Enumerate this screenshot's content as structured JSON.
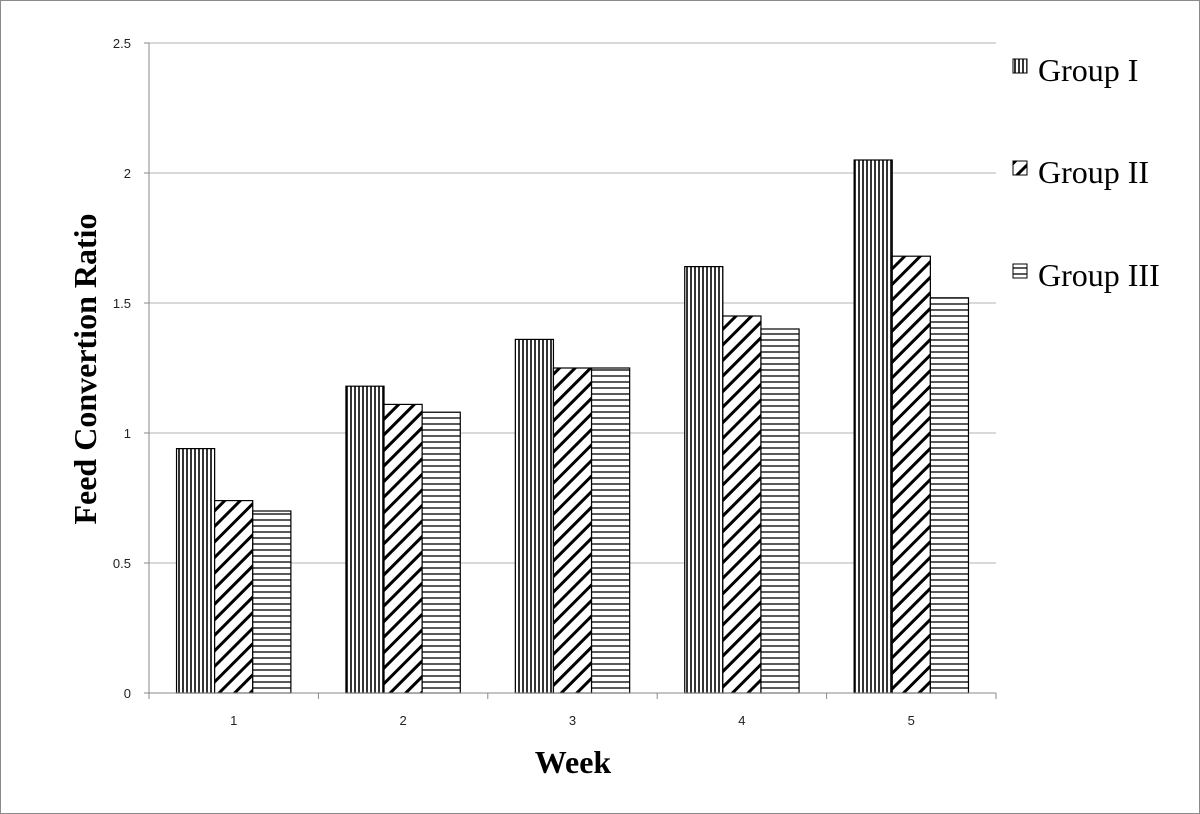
{
  "chart_data": {
    "type": "bar",
    "title": "",
    "xlabel": "Week",
    "ylabel": "Feed Convertion Ratio",
    "categories": [
      "1",
      "2",
      "3",
      "4",
      "5"
    ],
    "series": [
      {
        "name": "Group I",
        "pattern": "vertical-lines",
        "values": [
          0.94,
          1.18,
          1.36,
          1.64,
          2.05
        ]
      },
      {
        "name": "Group II",
        "pattern": "diagonal-lines",
        "values": [
          0.74,
          1.11,
          1.25,
          1.45,
          1.68
        ]
      },
      {
        "name": "Group III",
        "pattern": "horizontal-lines",
        "values": [
          0.7,
          1.08,
          1.25,
          1.4,
          1.52
        ]
      }
    ],
    "ylim": [
      0,
      2.5
    ],
    "yticks": [
      "0",
      "0.5",
      "1",
      "1.5",
      "2",
      "2.5"
    ],
    "grid": "horizontal",
    "legend_position": "right"
  },
  "colors": {
    "bar_outline": "#000000",
    "gridline": "#b3b3b3",
    "axis": "#888888"
  }
}
